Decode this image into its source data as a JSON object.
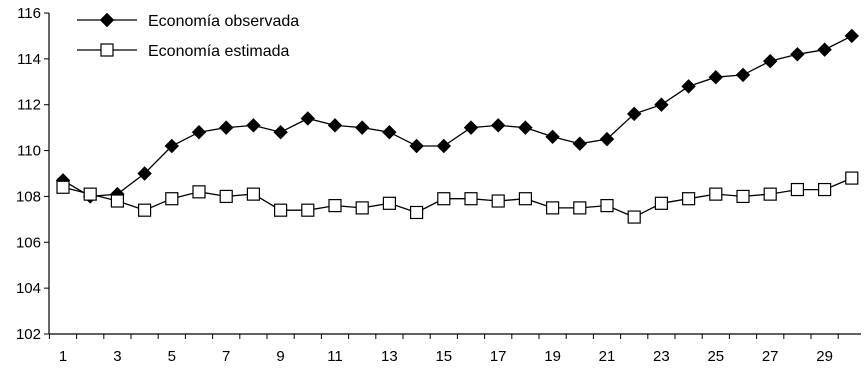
{
  "chart_data": {
    "type": "line",
    "x": [
      1,
      2,
      3,
      4,
      5,
      6,
      7,
      8,
      9,
      10,
      11,
      12,
      13,
      14,
      15,
      16,
      17,
      18,
      19,
      20,
      21,
      22,
      23,
      24,
      25,
      26,
      27,
      28,
      29,
      30
    ],
    "x_tick_labels": [
      "1",
      "3",
      "5",
      "7",
      "9",
      "11",
      "13",
      "15",
      "17",
      "19",
      "21",
      "23",
      "25",
      "27",
      "29"
    ],
    "y_tick_labels": [
      "102",
      "104",
      "106",
      "108",
      "110",
      "112",
      "114",
      "116"
    ],
    "ylim": [
      102,
      116
    ],
    "grid": false,
    "legend_position": "top-left",
    "series": [
      {
        "name": "Economía observada",
        "marker": "diamond-filled",
        "values": [
          108.7,
          108.0,
          108.1,
          109.0,
          110.2,
          110.8,
          111.0,
          111.1,
          110.8,
          111.4,
          111.1,
          111.0,
          110.8,
          110.2,
          110.2,
          111.0,
          111.1,
          111.0,
          110.6,
          110.3,
          110.5,
          111.6,
          112.0,
          112.8,
          113.2,
          113.3,
          113.9,
          114.2,
          114.4,
          115.0
        ]
      },
      {
        "name": "Economía estimada",
        "marker": "square-open",
        "values": [
          108.4,
          108.1,
          107.8,
          107.4,
          107.9,
          108.2,
          108.0,
          108.1,
          107.4,
          107.4,
          107.6,
          107.5,
          107.7,
          107.3,
          107.9,
          107.9,
          107.8,
          107.9,
          107.5,
          107.5,
          107.6,
          107.1,
          107.7,
          107.9,
          108.1,
          108.0,
          108.1,
          108.3,
          108.3,
          108.8
        ]
      }
    ]
  }
}
